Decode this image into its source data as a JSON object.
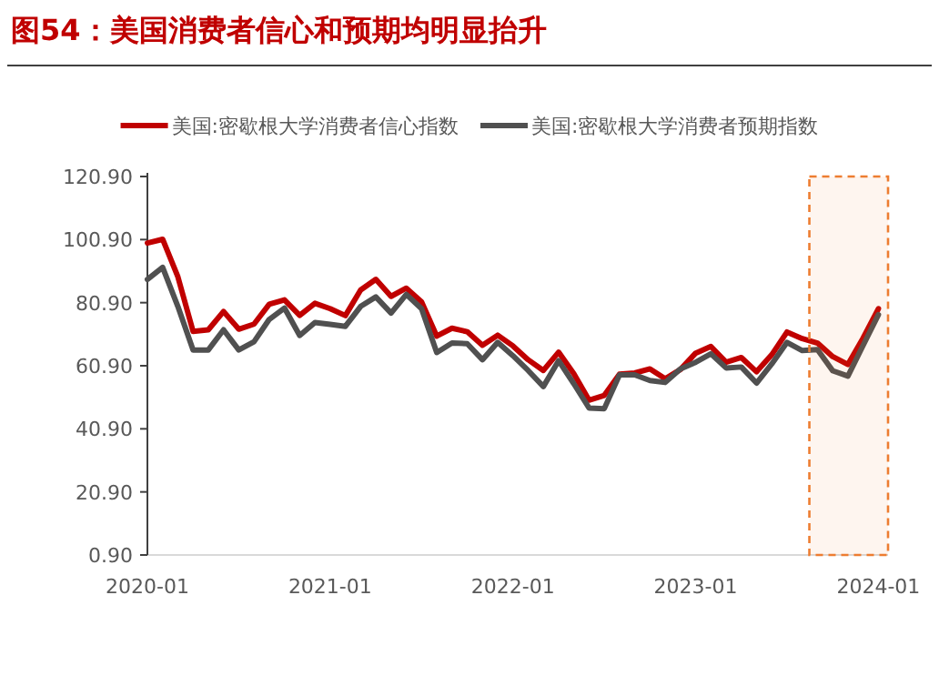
{
  "chart_data": {
    "type": "line",
    "title": "图54：美国消费者信心和预期均明显抬升",
    "x": [
      "2020-01",
      "2020-02",
      "2020-03",
      "2020-04",
      "2020-05",
      "2020-06",
      "2020-07",
      "2020-08",
      "2020-09",
      "2020-10",
      "2020-11",
      "2020-12",
      "2021-01",
      "2021-02",
      "2021-03",
      "2021-04",
      "2021-05",
      "2021-06",
      "2021-07",
      "2021-08",
      "2021-09",
      "2021-10",
      "2021-11",
      "2021-12",
      "2022-01",
      "2022-02",
      "2022-03",
      "2022-04",
      "2022-05",
      "2022-06",
      "2022-07",
      "2022-08",
      "2022-09",
      "2022-10",
      "2022-11",
      "2022-12",
      "2023-01",
      "2023-02",
      "2023-03",
      "2023-04",
      "2023-05",
      "2023-06",
      "2023-07",
      "2023-08",
      "2023-09",
      "2023-10",
      "2023-11",
      "2023-12",
      "2024-01"
    ],
    "series": [
      {
        "name": "美国:密歇根大学消费者信心指数",
        "color": "#c00000",
        "values": [
          99.8,
          101.0,
          89.1,
          71.8,
          72.3,
          78.1,
          72.5,
          74.1,
          80.4,
          81.8,
          76.9,
          80.7,
          79.0,
          76.8,
          84.9,
          88.3,
          82.9,
          85.5,
          81.2,
          70.3,
          72.8,
          71.7,
          67.4,
          70.6,
          67.2,
          62.8,
          59.4,
          65.2,
          58.4,
          50.0,
          51.5,
          58.2,
          58.6,
          59.9,
          56.8,
          59.7,
          64.9,
          67.0,
          62.0,
          63.5,
          59.0,
          64.4,
          71.6,
          69.5,
          68.1,
          63.8,
          61.3,
          69.7,
          79.0
        ]
      },
      {
        "name": "美国:密歇根大学消费者预期指数",
        "color": "#505050",
        "values": [
          88.3,
          92.1,
          79.7,
          65.9,
          65.9,
          72.3,
          65.9,
          68.5,
          75.6,
          79.2,
          70.5,
          74.6,
          74.0,
          73.4,
          79.7,
          82.7,
          77.6,
          83.5,
          79.0,
          65.1,
          68.1,
          67.9,
          62.8,
          68.3,
          64.1,
          59.4,
          54.3,
          62.5,
          55.2,
          47.5,
          47.3,
          58.0,
          58.0,
          56.2,
          55.6,
          59.9,
          62.0,
          64.7,
          60.2,
          60.5,
          55.4,
          61.5,
          68.3,
          65.7,
          66.0,
          59.3,
          57.6,
          67.4,
          77.1
        ]
      }
    ],
    "xlim": [
      "2020-01",
      "2024-01-20"
    ],
    "xticks": [
      "2020-01",
      "2021-01",
      "2022-01",
      "2023-01",
      "2024-01"
    ],
    "ylim": [
      0.9,
      120.9
    ],
    "yticks": [
      {
        "value": 0.9,
        "label": "0.90"
      },
      {
        "value": 20.9,
        "label": "20.90"
      },
      {
        "value": 40.9,
        "label": "40.90"
      },
      {
        "value": 60.9,
        "label": "60.90"
      },
      {
        "value": 80.9,
        "label": "80.90"
      },
      {
        "value": 100.9,
        "label": "100.90"
      },
      {
        "value": 120.9,
        "label": "120.90"
      }
    ],
    "bands": [
      {
        "axis": "x",
        "from": "2023-08-15",
        "to": "2024-01-20",
        "color": "#ed7d31"
      }
    ],
    "grid": false,
    "legend": "top",
    "marker": "none",
    "line_style": "solid"
  }
}
